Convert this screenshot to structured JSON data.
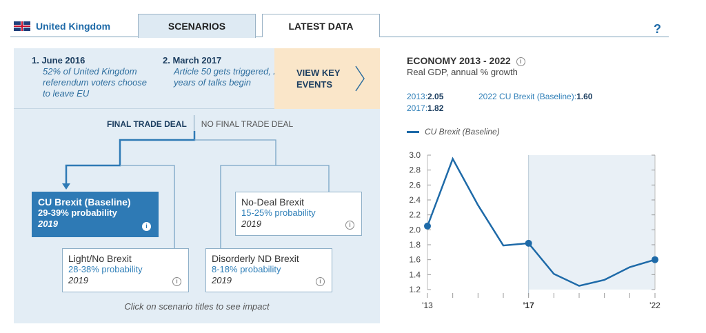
{
  "nav": {
    "country": "United Kingdom",
    "tabs": [
      {
        "label": "SCENARIOS",
        "active": true
      },
      {
        "label": "LATEST DATA",
        "active": false
      }
    ],
    "help": "?"
  },
  "events": [
    {
      "title": "1. June 2016",
      "desc": "52% of United Kingdom referendum voters choose to leave EU"
    },
    {
      "title": "2. March 2017",
      "desc": "Article 50 gets triggered, 2 years of talks begin"
    }
  ],
  "view_key_events": "VIEW KEY EVENTS",
  "deal_tabs": {
    "final": "FINAL TRADE DEAL",
    "no_final": "NO FINAL TRADE DEAL"
  },
  "scenarios": [
    {
      "title": "CU Brexit (Baseline)",
      "prob": "29-39% probability",
      "year": "2019",
      "selected": true
    },
    {
      "title": "No-Deal Brexit",
      "prob": "15-25% probability",
      "year": "2019",
      "selected": false
    },
    {
      "title": "Light/No Brexit",
      "prob": "28-38% probability",
      "year": "2019",
      "selected": false
    },
    {
      "title": "Disorderly ND Brexit",
      "prob": "8-18% probability",
      "year": "2019",
      "selected": false
    }
  ],
  "hint": "Click on scenario titles to see impact",
  "economy": {
    "title": "ECONOMY 2013 - 2022",
    "subtitle": "Real GDP, annual % growth",
    "stats": [
      {
        "label": "2013:",
        "value": "2.05"
      },
      {
        "label": "2022 CU Brexit (Baseline):",
        "value": "1.60"
      },
      {
        "label": "2017:",
        "value": "1.82"
      }
    ]
  },
  "colors": {
    "accent": "#1e6aa8",
    "selected": "#2e7ab5",
    "panel": "#e3edf5",
    "highlight": "#fae6c9"
  },
  "chart_data": {
    "type": "line",
    "x": [
      2013,
      2014,
      2015,
      2016,
      2017,
      2018,
      2019,
      2020,
      2021,
      2022
    ],
    "series": [
      {
        "name": "CU Brexit (Baseline)",
        "values": [
          2.05,
          2.95,
          2.33,
          1.79,
          1.82,
          1.41,
          1.25,
          1.33,
          1.5,
          1.6
        ]
      }
    ],
    "markers_at": [
      2013,
      2017,
      2022
    ],
    "xticklabels": [
      {
        "x": 2013,
        "label": "'13"
      },
      {
        "x": 2017,
        "label": "'17"
      },
      {
        "x": 2022,
        "label": "'22"
      }
    ],
    "yticks": [
      "1.2",
      "1.4",
      "1.6",
      "1.8",
      "2.0",
      "2.2",
      "2.4",
      "2.6",
      "2.8",
      "3.0"
    ],
    "ylim": [
      1.2,
      3.0
    ],
    "xlim": [
      2013,
      2022
    ],
    "forecast_from": 2017,
    "grid": false
  }
}
